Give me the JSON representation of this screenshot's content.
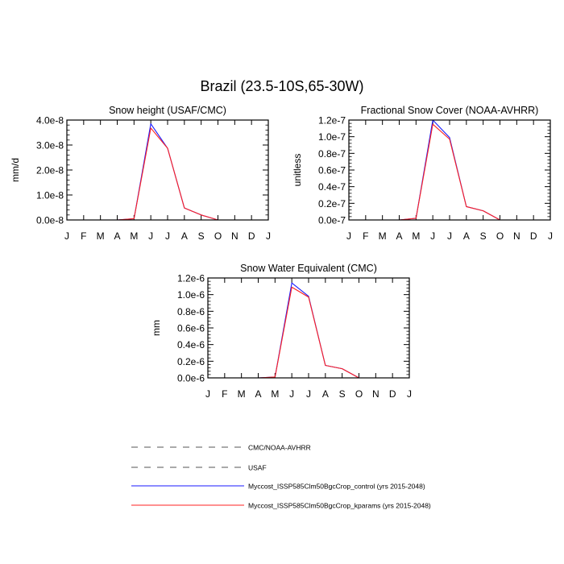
{
  "figure": {
    "title": "Brazil (23.5-10S,65-30W)"
  },
  "colors": {
    "control": "#1a1aff",
    "kparams": "#ff2020",
    "reference": "#555555"
  },
  "chart_data": [
    {
      "type": "line",
      "title": "Snow height (USAF/CMC)",
      "ylabel": "mm/d",
      "xlabel": "",
      "categories": [
        "J",
        "F",
        "M",
        "A",
        "M",
        "J",
        "J",
        "A",
        "S",
        "O",
        "N",
        "D",
        "J"
      ],
      "yticks": [
        "0.0e-8",
        "1.0e-8",
        "2.0e-8",
        "3.0e-8",
        "4.0e-8"
      ],
      "ylim": [
        0,
        4e-08
      ],
      "series": [
        {
          "name": "Myccost_ISSP585Clm50BgcCrop_control (yrs 2015-2048)",
          "color": "#1a1aff",
          "values": [
            0,
            0,
            0,
            0,
            5e-10,
            3.85e-08,
            2.87e-08,
            4.8e-09,
            2e-09,
            0,
            0,
            0,
            0
          ]
        },
        {
          "name": "Myccost_ISSP585Clm50BgcCrop_kparams (yrs 2015-2048)",
          "color": "#ff2020",
          "values": [
            0,
            0,
            0,
            0,
            5e-10,
            3.68e-08,
            2.87e-08,
            4.8e-09,
            2e-09,
            0,
            0,
            0,
            0
          ]
        }
      ]
    },
    {
      "type": "line",
      "title": "Fractional Snow Cover (NOAA-AVHRR)",
      "ylabel": "unitless",
      "xlabel": "",
      "categories": [
        "J",
        "F",
        "M",
        "A",
        "M",
        "J",
        "J",
        "A",
        "S",
        "O",
        "N",
        "D",
        "J"
      ],
      "yticks": [
        "0.0e-7",
        "0.2e-7",
        "0.4e-7",
        "0.6e-7",
        "0.8e-7",
        "1.0e-7",
        "1.2e-7"
      ],
      "ylim": [
        0,
        1.2e-07
      ],
      "series": [
        {
          "name": "Myccost_ISSP585Clm50BgcCrop_control (yrs 2015-2048)",
          "color": "#1a1aff",
          "values": [
            0,
            0,
            0,
            0,
            2e-09,
            1.2e-07,
            9.9e-08,
            1.6e-08,
            1.1e-08,
            0,
            0,
            0,
            0
          ]
        },
        {
          "name": "Myccost_ISSP585Clm50BgcCrop_kparams (yrs 2015-2048)",
          "color": "#ff2020",
          "values": [
            0,
            0,
            0,
            0,
            2e-09,
            1.15e-07,
            9.7e-08,
            1.6e-08,
            1.1e-08,
            0,
            0,
            0,
            0
          ]
        }
      ]
    },
    {
      "type": "line",
      "title": "Snow Water Equivalent (CMC)",
      "ylabel": "mm",
      "xlabel": "",
      "categories": [
        "J",
        "F",
        "M",
        "A",
        "M",
        "J",
        "J",
        "A",
        "S",
        "O",
        "N",
        "D",
        "J"
      ],
      "yticks": [
        "0.0e-6",
        "0.2e-6",
        "0.4e-6",
        "0.6e-6",
        "0.8e-6",
        "1.0e-6",
        "1.2e-6"
      ],
      "ylim": [
        0,
        1.2e-06
      ],
      "series": [
        {
          "name": "Myccost_ISSP585Clm50BgcCrop_control (yrs 2015-2048)",
          "color": "#1a1aff",
          "values": [
            0,
            0,
            0,
            0,
            1e-08,
            1.14e-06,
            9.8e-07,
            1.5e-07,
            1.1e-07,
            0,
            0,
            0,
            0
          ]
        },
        {
          "name": "Myccost_ISSP585Clm50BgcCrop_kparams (yrs 2015-2048)",
          "color": "#ff2020",
          "values": [
            0,
            0,
            0,
            0,
            1e-08,
            1.09e-06,
            9.7e-07,
            1.5e-07,
            1.1e-07,
            0,
            0,
            0,
            0
          ]
        }
      ]
    }
  ],
  "legend": {
    "placement": "bottom",
    "entries": [
      {
        "label": "CMC/NOAA-AVHRR",
        "style": "dashed",
        "color": "#555555"
      },
      {
        "label": "USAF",
        "style": "dashed",
        "color": "#555555"
      },
      {
        "label": "Myccost_ISSP585Clm50BgcCrop_control (yrs 2015-2048)",
        "style": "solid",
        "color": "#1a1aff"
      },
      {
        "label": "Myccost_ISSP585Clm50BgcCrop_kparams (yrs 2015-2048)",
        "style": "solid",
        "color": "#ff2020"
      }
    ]
  }
}
